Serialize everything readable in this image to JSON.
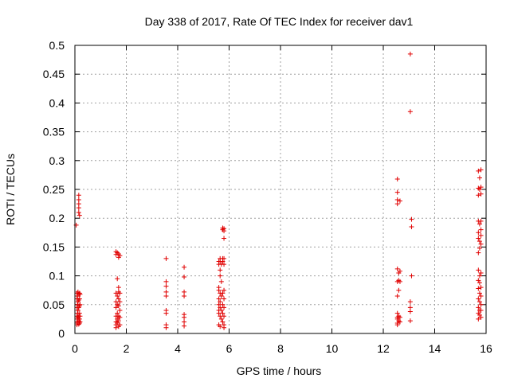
{
  "chart_data": {
    "type": "scatter",
    "title": "Day 338 of 2017, Rate Of TEC Index for receiver dav1",
    "xlabel": "GPS time / hours",
    "ylabel": "ROTI / TECUs",
    "xlim": [
      0,
      16
    ],
    "ylim": [
      0,
      0.5
    ],
    "xticks": [
      0,
      2,
      4,
      6,
      8,
      10,
      12,
      14,
      16
    ],
    "yticks": [
      0,
      0.05,
      0.1,
      0.15,
      0.2,
      0.25,
      0.3,
      0.35,
      0.4,
      0.45,
      0.5
    ],
    "xtick_labels": [
      "0",
      "2",
      "4",
      "6",
      "8",
      "10",
      "12",
      "14",
      "16"
    ],
    "ytick_labels": [
      "0",
      "0.05",
      "0.1",
      "0.15",
      "0.2",
      "0.25",
      "0.3",
      "0.35",
      "0.4",
      "0.45",
      "0.5"
    ],
    "grid": true,
    "marker": "+",
    "color": "#e00000",
    "series": [
      {
        "points": [
          [
            0.05,
            0.188
          ],
          [
            0.08,
            0.07
          ],
          [
            0.08,
            0.06
          ],
          [
            0.08,
            0.045
          ],
          [
            0.08,
            0.03
          ],
          [
            0.08,
            0.02
          ],
          [
            0.08,
            0.015
          ],
          [
            0.1,
            0.065
          ],
          [
            0.1,
            0.05
          ],
          [
            0.1,
            0.035
          ],
          [
            0.1,
            0.025
          ],
          [
            0.1,
            0.018
          ],
          [
            0.12,
            0.072
          ],
          [
            0.12,
            0.055
          ],
          [
            0.12,
            0.04
          ],
          [
            0.12,
            0.028
          ],
          [
            0.15,
            0.24
          ],
          [
            0.15,
            0.232
          ],
          [
            0.15,
            0.225
          ],
          [
            0.15,
            0.218
          ],
          [
            0.15,
            0.21
          ],
          [
            0.15,
            0.068
          ],
          [
            0.15,
            0.058
          ],
          [
            0.15,
            0.045
          ],
          [
            0.15,
            0.03
          ],
          [
            0.15,
            0.022
          ],
          [
            0.15,
            0.016
          ],
          [
            0.18,
            0.205
          ],
          [
            0.18,
            0.07
          ],
          [
            0.18,
            0.06
          ],
          [
            0.18,
            0.048
          ],
          [
            0.18,
            0.035
          ],
          [
            0.18,
            0.025
          ],
          [
            0.18,
            0.018
          ],
          [
            0.2,
            0.068
          ],
          [
            0.2,
            0.05
          ],
          [
            0.2,
            0.03
          ],
          [
            0.2,
            0.02
          ],
          [
            1.6,
            0.142
          ],
          [
            1.6,
            0.137
          ],
          [
            1.6,
            0.07
          ],
          [
            1.6,
            0.055
          ],
          [
            1.6,
            0.045
          ],
          [
            1.6,
            0.03
          ],
          [
            1.6,
            0.02
          ],
          [
            1.6,
            0.015
          ],
          [
            1.6,
            0.01
          ],
          [
            1.65,
            0.14
          ],
          [
            1.65,
            0.095
          ],
          [
            1.65,
            0.065
          ],
          [
            1.65,
            0.05
          ],
          [
            1.65,
            0.035
          ],
          [
            1.65,
            0.025
          ],
          [
            1.65,
            0.018
          ],
          [
            1.7,
            0.138
          ],
          [
            1.7,
            0.132
          ],
          [
            1.7,
            0.08
          ],
          [
            1.7,
            0.072
          ],
          [
            1.7,
            0.06
          ],
          [
            1.7,
            0.048
          ],
          [
            1.7,
            0.03
          ],
          [
            1.7,
            0.022
          ],
          [
            1.7,
            0.012
          ],
          [
            1.75,
            0.135
          ],
          [
            1.75,
            0.07
          ],
          [
            1.75,
            0.055
          ],
          [
            1.75,
            0.04
          ],
          [
            1.75,
            0.028
          ],
          [
            1.75,
            0.015
          ],
          [
            3.55,
            0.13
          ],
          [
            3.55,
            0.09
          ],
          [
            3.55,
            0.082
          ],
          [
            3.55,
            0.072
          ],
          [
            3.55,
            0.065
          ],
          [
            3.55,
            0.04
          ],
          [
            3.55,
            0.035
          ],
          [
            3.55,
            0.015
          ],
          [
            3.55,
            0.01
          ],
          [
            4.25,
            0.115
          ],
          [
            4.25,
            0.098
          ],
          [
            4.25,
            0.072
          ],
          [
            4.25,
            0.065
          ],
          [
            4.25,
            0.033
          ],
          [
            4.25,
            0.028
          ],
          [
            4.25,
            0.02
          ],
          [
            4.25,
            0.013
          ],
          [
            5.6,
            0.125
          ],
          [
            5.6,
            0.12
          ],
          [
            5.6,
            0.08
          ],
          [
            5.6,
            0.075
          ],
          [
            5.6,
            0.06
          ],
          [
            5.6,
            0.05
          ],
          [
            5.6,
            0.04
          ],
          [
            5.6,
            0.035
          ],
          [
            5.6,
            0.015
          ],
          [
            5.65,
            0.13
          ],
          [
            5.65,
            0.125
          ],
          [
            5.65,
            0.11
          ],
          [
            5.65,
            0.1
          ],
          [
            5.65,
            0.07
          ],
          [
            5.65,
            0.055
          ],
          [
            5.65,
            0.045
          ],
          [
            5.65,
            0.03
          ],
          [
            5.65,
            0.012
          ],
          [
            5.7,
            0.12
          ],
          [
            5.7,
            0.09
          ],
          [
            5.7,
            0.065
          ],
          [
            5.7,
            0.04
          ],
          [
            5.7,
            0.025
          ],
          [
            5.75,
            0.183
          ],
          [
            5.75,
            0.18
          ],
          [
            5.75,
            0.13
          ],
          [
            5.75,
            0.125
          ],
          [
            5.75,
            0.07
          ],
          [
            5.75,
            0.05
          ],
          [
            5.75,
            0.035
          ],
          [
            5.75,
            0.02
          ],
          [
            5.8,
            0.182
          ],
          [
            5.8,
            0.178
          ],
          [
            5.8,
            0.165
          ],
          [
            5.8,
            0.13
          ],
          [
            5.8,
            0.12
          ],
          [
            5.8,
            0.075
          ],
          [
            5.8,
            0.06
          ],
          [
            5.8,
            0.045
          ],
          [
            5.8,
            0.03
          ],
          [
            5.8,
            0.015
          ],
          [
            5.8,
            0.01
          ],
          [
            12.55,
            0.268
          ],
          [
            12.55,
            0.245
          ],
          [
            12.55,
            0.232
          ],
          [
            12.55,
            0.225
          ],
          [
            12.55,
            0.112
          ],
          [
            12.55,
            0.09
          ],
          [
            12.55,
            0.065
          ],
          [
            12.55,
            0.035
          ],
          [
            12.55,
            0.028
          ],
          [
            12.55,
            0.025
          ],
          [
            12.55,
            0.018
          ],
          [
            12.55,
            0.015
          ],
          [
            12.6,
            0.105
          ],
          [
            12.6,
            0.092
          ],
          [
            12.6,
            0.075
          ],
          [
            12.6,
            0.03
          ],
          [
            12.6,
            0.022
          ],
          [
            12.65,
            0.23
          ],
          [
            12.65,
            0.108
          ],
          [
            12.65,
            0.09
          ],
          [
            12.65,
            0.028
          ],
          [
            12.65,
            0.02
          ],
          [
            13.05,
            0.485
          ],
          [
            13.05,
            0.385
          ],
          [
            13.05,
            0.055
          ],
          [
            13.05,
            0.045
          ],
          [
            13.05,
            0.038
          ],
          [
            13.05,
            0.022
          ],
          [
            13.1,
            0.198
          ],
          [
            13.1,
            0.185
          ],
          [
            13.1,
            0.1
          ],
          [
            15.7,
            0.282
          ],
          [
            15.7,
            0.252
          ],
          [
            15.7,
            0.24
          ],
          [
            15.7,
            0.195
          ],
          [
            15.7,
            0.175
          ],
          [
            15.7,
            0.165
          ],
          [
            15.7,
            0.14
          ],
          [
            15.7,
            0.11
          ],
          [
            15.7,
            0.092
          ],
          [
            15.7,
            0.078
          ],
          [
            15.7,
            0.06
          ],
          [
            15.7,
            0.045
          ],
          [
            15.7,
            0.035
          ],
          [
            15.7,
            0.025
          ],
          [
            15.75,
            0.27
          ],
          [
            15.75,
            0.25
          ],
          [
            15.75,
            0.19
          ],
          [
            15.75,
            0.16
          ],
          [
            15.75,
            0.148
          ],
          [
            15.75,
            0.1
          ],
          [
            15.75,
            0.088
          ],
          [
            15.75,
            0.07
          ],
          [
            15.75,
            0.055
          ],
          [
            15.75,
            0.04
          ],
          [
            15.75,
            0.032
          ],
          [
            15.8,
            0.284
          ],
          [
            15.8,
            0.254
          ],
          [
            15.8,
            0.242
          ],
          [
            15.8,
            0.195
          ],
          [
            15.8,
            0.18
          ],
          [
            15.8,
            0.17
          ],
          [
            15.8,
            0.155
          ],
          [
            15.8,
            0.105
          ],
          [
            15.8,
            0.08
          ],
          [
            15.8,
            0.065
          ],
          [
            15.8,
            0.05
          ],
          [
            15.8,
            0.04
          ],
          [
            15.8,
            0.028
          ]
        ]
      }
    ]
  }
}
